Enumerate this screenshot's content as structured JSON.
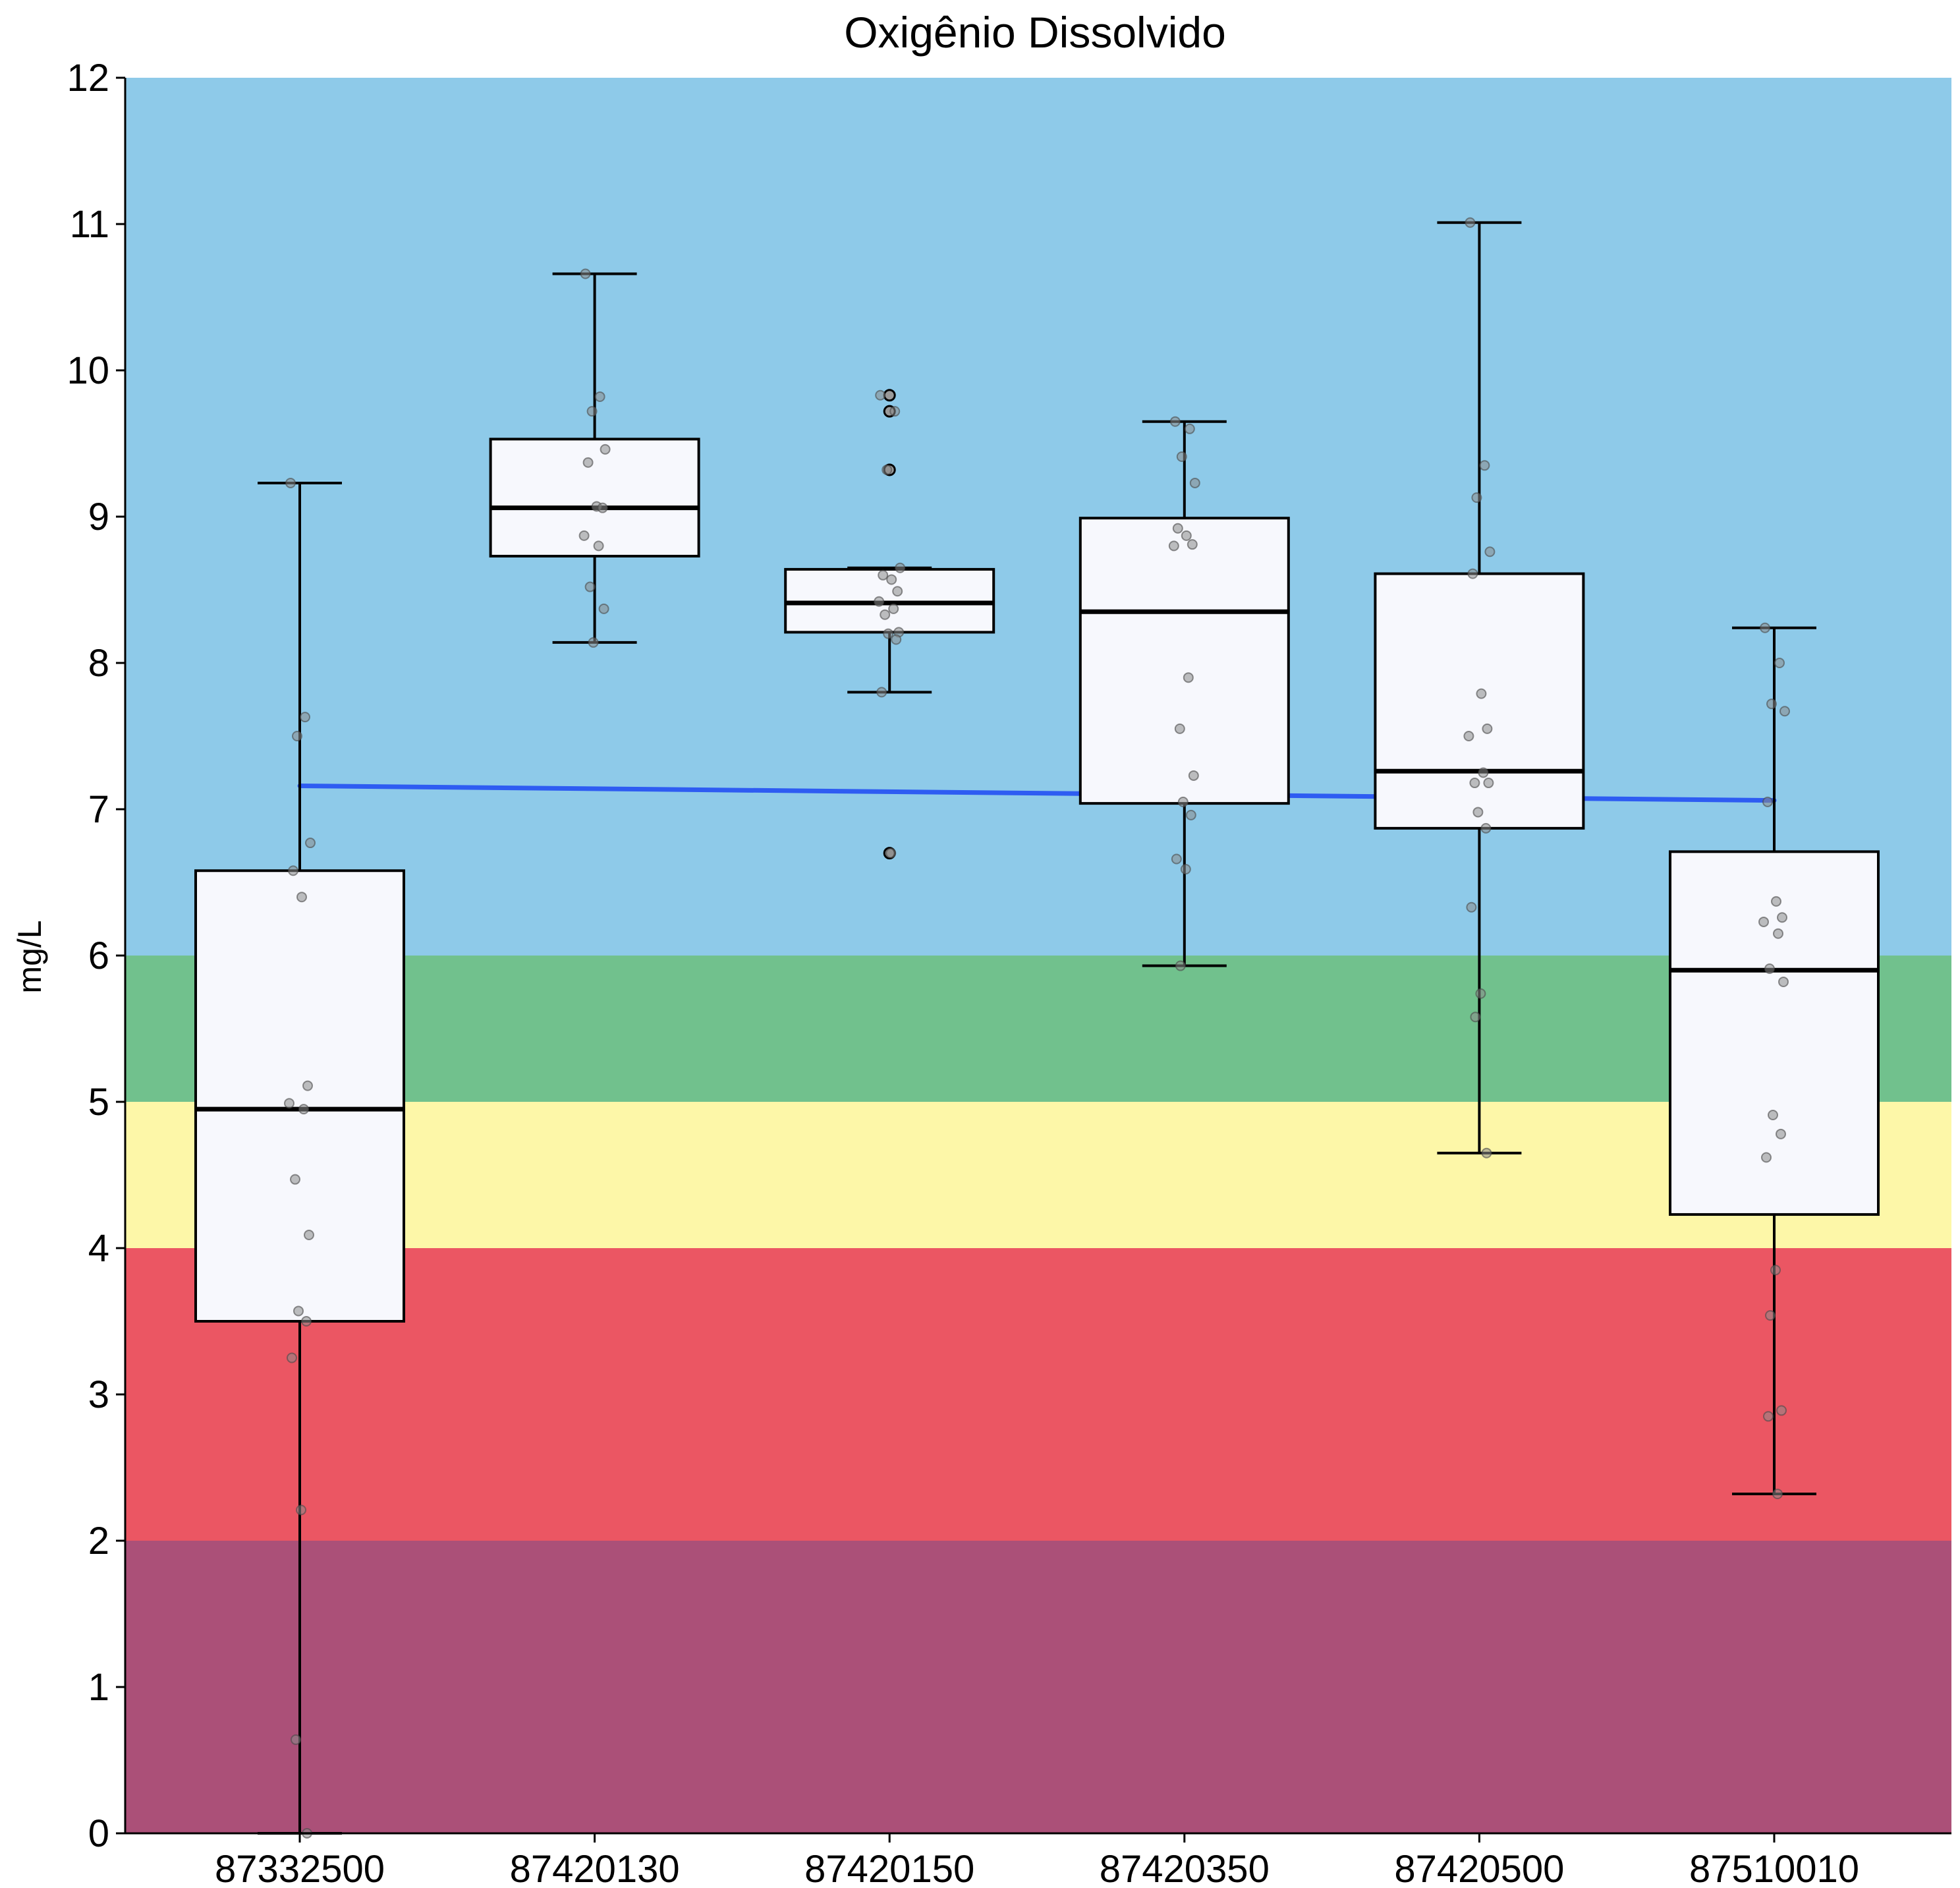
{
  "chart_data": {
    "type": "boxplot",
    "title": "Oxigênio Dissolvido",
    "ylabel": "mg/L",
    "ylim": [
      0,
      12
    ],
    "yticks": [
      0,
      1,
      2,
      3,
      4,
      5,
      6,
      7,
      8,
      9,
      10,
      11,
      12
    ],
    "grid": false,
    "categories": [
      "87332500",
      "87420130",
      "87420150",
      "87420350",
      "87420500",
      "87510010"
    ],
    "bands": [
      {
        "from": 0,
        "to": 2,
        "color": "#ab5078"
      },
      {
        "from": 2,
        "to": 4,
        "color": "#eb5663"
      },
      {
        "from": 4,
        "to": 5,
        "color": "#fdf7a8"
      },
      {
        "from": 5,
        "to": 6,
        "color": "#71c18d"
      },
      {
        "from": 6,
        "to": 12,
        "color": "#8ecae9"
      }
    ],
    "boxes": [
      {
        "min": 0.0,
        "q1": 3.5,
        "median": 4.95,
        "q3": 6.58,
        "max": 9.23,
        "outliers": []
      },
      {
        "min": 8.14,
        "q1": 8.73,
        "median": 9.06,
        "q3": 9.53,
        "max": 10.66,
        "outliers": []
      },
      {
        "min": 7.8,
        "q1": 8.21,
        "median": 8.41,
        "q3": 8.64,
        "max": 8.65,
        "outliers": [
          9.83,
          9.72,
          9.32,
          6.7
        ]
      },
      {
        "min": 5.93,
        "q1": 7.04,
        "median": 8.35,
        "q3": 8.99,
        "max": 9.65,
        "outliers": []
      },
      {
        "min": 4.65,
        "q1": 6.87,
        "median": 7.26,
        "q3": 8.61,
        "max": 11.01,
        "outliers": []
      },
      {
        "min": 2.32,
        "q1": 4.23,
        "median": 5.9,
        "q3": 6.71,
        "max": 8.24,
        "outliers": []
      }
    ],
    "points": [
      [
        9.23,
        7.63,
        7.5,
        6.77,
        6.58,
        6.4,
        5.11,
        4.99,
        4.95,
        4.47,
        4.09,
        3.57,
        3.5,
        3.25,
        2.21,
        0.64,
        0.0
      ],
      [
        10.66,
        9.82,
        9.72,
        9.46,
        9.37,
        9.07,
        9.06,
        8.87,
        8.8,
        8.52,
        8.37,
        8.14
      ],
      [
        9.83,
        9.72,
        9.32,
        8.65,
        8.6,
        8.57,
        8.49,
        8.42,
        8.37,
        8.33,
        8.21,
        8.2,
        8.16,
        7.8,
        6.7
      ],
      [
        9.65,
        9.6,
        9.41,
        9.23,
        8.92,
        8.87,
        8.81,
        8.8,
        7.9,
        7.55,
        7.23,
        7.05,
        6.96,
        6.66,
        6.59,
        5.93
      ],
      [
        11.01,
        9.35,
        9.13,
        8.76,
        8.61,
        7.79,
        7.55,
        7.5,
        7.25,
        7.18,
        7.18,
        6.98,
        6.87,
        6.33,
        5.74,
        5.58,
        4.65
      ],
      [
        8.24,
        8.0,
        7.72,
        7.67,
        7.05,
        6.37,
        6.26,
        6.23,
        6.15,
        5.91,
        5.82,
        4.91,
        4.78,
        4.62,
        3.85,
        3.54,
        2.89,
        2.85,
        2.32
      ]
    ],
    "trend": {
      "color": "#2e5cf2",
      "from_category": 0,
      "to_category": 5,
      "start": 7.16,
      "end": 7.06
    },
    "colors": {
      "box_fill": "#f7f8fd",
      "box_stroke": "#000000",
      "point_fill": "#8a8a8a"
    }
  }
}
